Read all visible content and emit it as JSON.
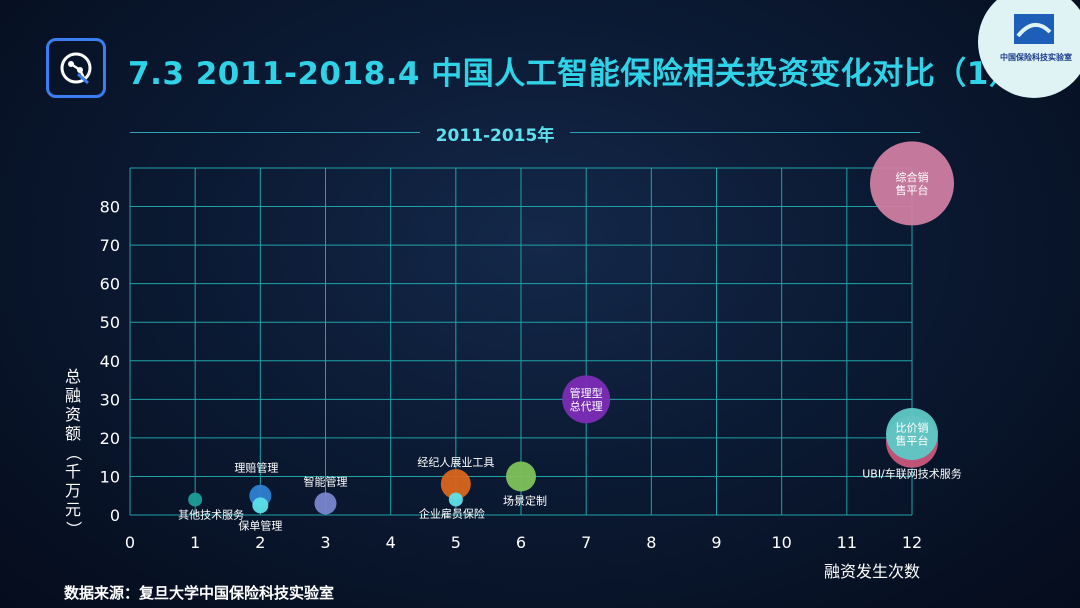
{
  "header": {
    "title": "7.3 2011-2018.4 中国人工智能保险相关投资变化对比（1）",
    "brand_name": "中国保险科技实验室"
  },
  "footer": {
    "source": "数据来源：复旦大学中国保险科技实验室"
  },
  "colors": {
    "title": "#2fd2e6",
    "grid": "#1fa3a8",
    "accent_border": "#3a7ef0"
  },
  "chart_data": {
    "type": "scatter",
    "title": "2011-2015年",
    "xlabel": "融资发生次数",
    "ylabel": "总融资额（千万元）",
    "xlim": [
      0,
      12
    ],
    "ylim": [
      0,
      90
    ],
    "x_ticks": [
      "0",
      "1",
      "2",
      "3",
      "4",
      "5",
      "6",
      "7",
      "8",
      "9",
      "10",
      "11",
      "12"
    ],
    "y_ticks": [
      "0",
      "10",
      "20",
      "30",
      "40",
      "50",
      "60",
      "70",
      "80"
    ],
    "grid": true,
    "points": [
      {
        "label": "其他技术服务",
        "x": 1,
        "y": 4,
        "size": 7,
        "color": "#1d9e9a",
        "label_pos": "below"
      },
      {
        "label": "理赔管理",
        "x": 2,
        "y": 5,
        "size": 11,
        "color": "#2f7fd2",
        "label_pos": "above"
      },
      {
        "label": "保单管理",
        "x": 2,
        "y": 2.5,
        "size": 8,
        "color": "#5de2ea",
        "label_pos": "below"
      },
      {
        "label": "智能管理",
        "x": 3,
        "y": 3,
        "size": 11,
        "color": "#7a86cf",
        "label_pos": "above"
      },
      {
        "label": "经纪人展业工具",
        "x": 5,
        "y": 8,
        "size": 15,
        "color": "#d9661c",
        "label_pos": "above"
      },
      {
        "label": "企业雇员保险",
        "x": 5,
        "y": 4,
        "size": 7,
        "color": "#5de2ea",
        "label_pos": "below"
      },
      {
        "label": "场景定制",
        "x": 6,
        "y": 10,
        "size": 15,
        "color": "#7fc25a",
        "label_pos": "below"
      },
      {
        "label": "管理型总代理",
        "x": 7,
        "y": 30,
        "size": 24,
        "color": "#7c2cb6",
        "label_pos": "inside",
        "lines": [
          "管理型",
          "总代理"
        ]
      },
      {
        "label": "UBI/车联网技术服务",
        "x": 12,
        "y": 19,
        "size": 26,
        "color": "#c9577a",
        "label_pos": "below"
      },
      {
        "label": "比价销售平台",
        "x": 12,
        "y": 21,
        "size": 26,
        "color": "#5ec9c6",
        "label_pos": "inside",
        "lines": [
          "比价销",
          "售平台"
        ]
      },
      {
        "label": "综合销售平台",
        "x": 12,
        "y": 86,
        "size": 42,
        "color": "#cf7ea2",
        "label_pos": "inside",
        "lines": [
          "综合销",
          "售平台"
        ]
      }
    ]
  }
}
